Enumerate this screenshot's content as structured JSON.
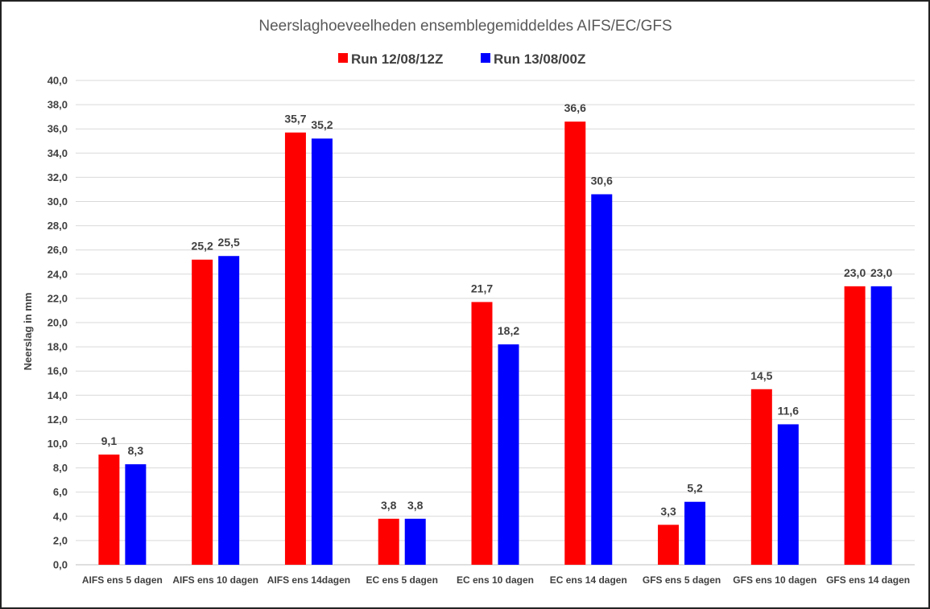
{
  "chart_data": {
    "type": "bar",
    "title": "Neerslaghoeveelheden ensemblegemiddeldes AIFS/EC/GFS",
    "ylabel": "Neerslag in mm",
    "xlabel": "",
    "ylim": [
      0,
      40
    ],
    "ytick_step": 2,
    "ytick_labels": [
      "0,0",
      "2,0",
      "4,0",
      "6,0",
      "8,0",
      "10,0",
      "12,0",
      "14,0",
      "16,0",
      "18,0",
      "20,0",
      "22,0",
      "24,0",
      "26,0",
      "28,0",
      "30,0",
      "32,0",
      "34,0",
      "36,0",
      "38,0",
      "40,0"
    ],
    "grid": true,
    "legend_position": "top",
    "categories": [
      "AIFS ens 5 dagen",
      "AIFS ens 10 dagen",
      "AIFS ens 14dagen",
      "EC ens 5 dagen",
      "EC ens 10 dagen",
      "EC ens 14 dagen",
      "GFS ens 5 dagen",
      "GFS ens 10 dagen",
      "GFS ens 14 dagen"
    ],
    "series": [
      {
        "name": "Run 12/08/12Z",
        "color": "#ff0000",
        "values": [
          9.1,
          25.2,
          35.7,
          3.8,
          21.7,
          36.6,
          3.3,
          14.5,
          23.0
        ],
        "labels": [
          "9,1",
          "25,2",
          "35,7",
          "3,8",
          "21,7",
          "36,6",
          "3,3",
          "14,5",
          "23,0"
        ]
      },
      {
        "name": "Run 13/08/00Z",
        "color": "#0000ff",
        "values": [
          8.3,
          25.5,
          35.2,
          3.8,
          18.2,
          30.6,
          5.2,
          11.6,
          23.0
        ],
        "labels": [
          "8,3",
          "25,5",
          "35,2",
          "3,8",
          "18,2",
          "30,6",
          "5,2",
          "11,6",
          "23,0"
        ]
      }
    ]
  }
}
